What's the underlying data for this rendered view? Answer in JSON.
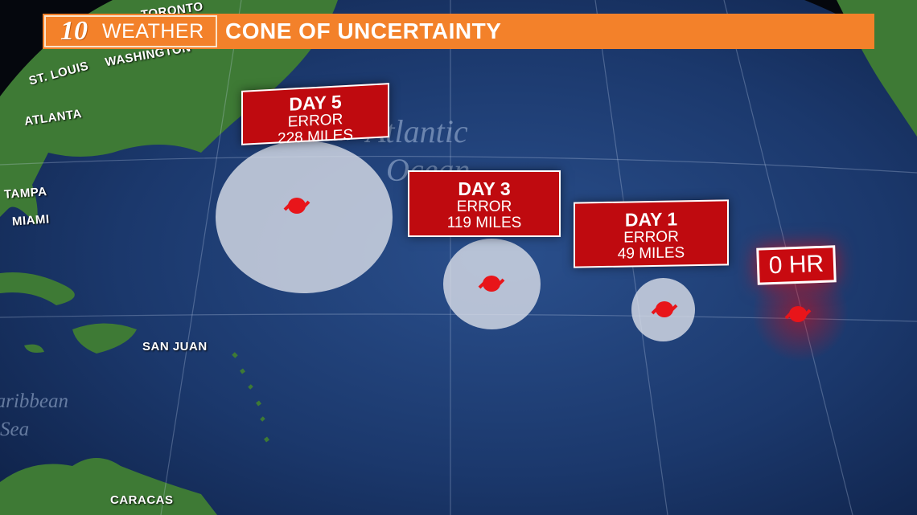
{
  "banner": {
    "logo_number": "10",
    "logo_word": "WEATHER",
    "title": "CONE OF UNCERTAINTY",
    "color": "#f3812a"
  },
  "cities": [
    "TORONTO",
    "WASHINGTON",
    "ST. LOUIS",
    "ATLANTA",
    "TAMPA",
    "MIAMI",
    "SAN JUAN",
    "CARACAS"
  ],
  "water_labels": {
    "ocean_1": "Atlantic",
    "ocean_2": "Ocean",
    "sea_1": "Caribbean",
    "sea_2": "Sea"
  },
  "forecast": [
    {
      "day": "DAY 5",
      "label": "ERROR",
      "error": "228 MILES"
    },
    {
      "day": "DAY 3",
      "label": "ERROR",
      "error": "119 MILES"
    },
    {
      "day": "DAY 1",
      "label": "ERROR",
      "error": "49 MILES"
    },
    {
      "day": "0 HR"
    }
  ],
  "colors": {
    "box": "#bf0a0f",
    "storm": "#e8151a",
    "ocean": "#1c3a70",
    "land": "#3e7a35"
  },
  "icons": [
    "hurricane-icon"
  ]
}
